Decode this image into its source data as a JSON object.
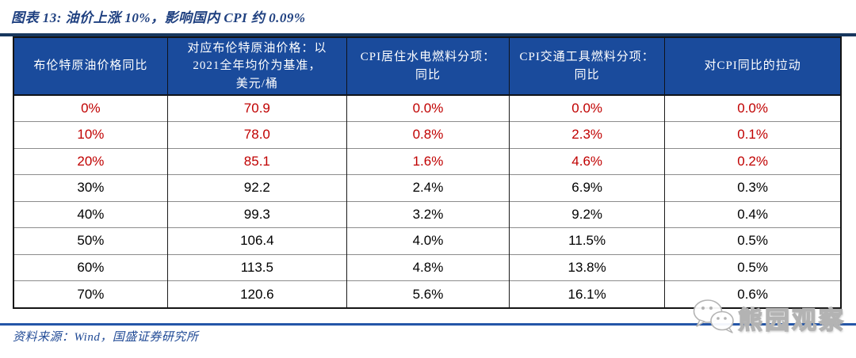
{
  "title": "图表 13:  油价上涨 10%，影响国内 CPI 约 0.09%",
  "chart_data": {
    "type": "table",
    "title": "图表 13:  油价上涨 10%，影响国内 CPI 约 0.09%",
    "columns": [
      "布伦特原油价格同比",
      "对应布伦特原油价格：以\n2021全年均价为基准，\n美元/桶",
      "CPI居住水电燃料分项：\n同比",
      "CPI交通工具燃料分项：\n同比",
      "对CPI同比的拉动"
    ],
    "rows": [
      [
        "0%",
        "70.9",
        "0.0%",
        "0.0%",
        "0.0%"
      ],
      [
        "10%",
        "78.0",
        "0.8%",
        "2.3%",
        "0.1%"
      ],
      [
        "20%",
        "85.1",
        "1.6%",
        "4.6%",
        "0.2%"
      ],
      [
        "30%",
        "92.2",
        "2.4%",
        "6.9%",
        "0.3%"
      ],
      [
        "40%",
        "99.3",
        "3.2%",
        "9.2%",
        "0.4%"
      ],
      [
        "50%",
        "106.4",
        "4.0%",
        "11.5%",
        "0.5%"
      ],
      [
        "60%",
        "113.5",
        "4.8%",
        "13.8%",
        "0.5%"
      ],
      [
        "70%",
        "120.6",
        "5.6%",
        "16.1%",
        "0.6%"
      ]
    ],
    "highlighted_row_indices": [
      0,
      1,
      2
    ],
    "source_note": "资料来源：Wind，国盛证券研究所"
  },
  "watermark": {
    "text": "熊园观察",
    "icon": "wechat-icon"
  },
  "colors": {
    "header_bg": "#1A4B9C",
    "highlight_text": "#C00000",
    "top_bar": "#17375E",
    "bottom_line": "#2456A8",
    "title_text": "#1F4080"
  }
}
